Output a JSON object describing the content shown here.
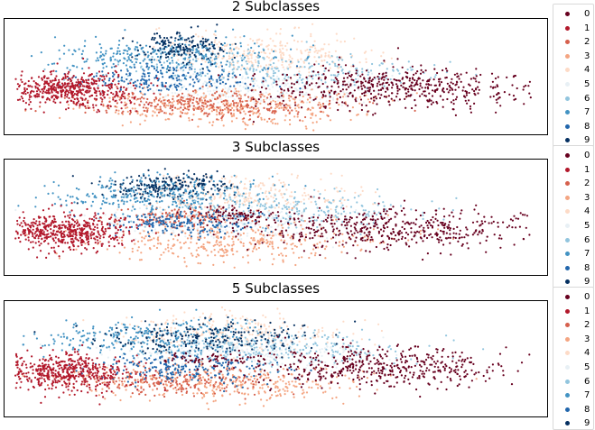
{
  "chart_data": [
    {
      "type": "scatter",
      "title": "2 Subclasses",
      "legend": [
        "0",
        "1",
        "2",
        "3",
        "4",
        "5",
        "6",
        "7",
        "8",
        "9"
      ],
      "legend_placement": "right",
      "axes_visible": false,
      "clusters": [
        {
          "label": "1",
          "cx": 0.12,
          "cy": 0.62,
          "spread": [
            0.06,
            0.09
          ],
          "n": 520
        },
        {
          "label": "0",
          "cx": 0.72,
          "cy": 0.6,
          "spread": [
            0.13,
            0.1
          ],
          "n": 520
        },
        {
          "label": "2",
          "cx": 0.38,
          "cy": 0.75,
          "spread": [
            0.12,
            0.06
          ],
          "n": 300
        },
        {
          "label": "3",
          "cx": 0.42,
          "cy": 0.78,
          "spread": [
            0.14,
            0.08
          ],
          "n": 380
        },
        {
          "label": "4",
          "cx": 0.48,
          "cy": 0.3,
          "spread": [
            0.1,
            0.09
          ],
          "n": 320
        },
        {
          "label": "5",
          "cx": 0.45,
          "cy": 0.62,
          "spread": [
            0.14,
            0.07
          ],
          "n": 340
        },
        {
          "label": "6",
          "cx": 0.52,
          "cy": 0.45,
          "spread": [
            0.14,
            0.08
          ],
          "n": 300
        },
        {
          "label": "7",
          "cx": 0.28,
          "cy": 0.3,
          "spread": [
            0.1,
            0.08
          ],
          "n": 320
        },
        {
          "label": "8",
          "cx": 0.3,
          "cy": 0.52,
          "spread": [
            0.08,
            0.06
          ],
          "n": 200
        },
        {
          "label": "9",
          "cx": 0.33,
          "cy": 0.22,
          "spread": [
            0.04,
            0.07
          ],
          "n": 160
        }
      ]
    },
    {
      "type": "scatter",
      "title": "3 Subclasses",
      "legend": [
        "0",
        "1",
        "2",
        "3",
        "4",
        "5",
        "6",
        "7",
        "8",
        "9"
      ],
      "legend_placement": "right",
      "axes_visible": false,
      "clusters": [
        {
          "label": "1",
          "cx": 0.11,
          "cy": 0.63,
          "spread": [
            0.06,
            0.09
          ],
          "n": 520
        },
        {
          "label": "0",
          "cx": 0.72,
          "cy": 0.6,
          "spread": [
            0.13,
            0.1
          ],
          "n": 480
        },
        {
          "label": "0",
          "cx": 0.43,
          "cy": 0.48,
          "spread": [
            0.04,
            0.04
          ],
          "n": 80
        },
        {
          "label": "2",
          "cx": 0.32,
          "cy": 0.5,
          "spread": [
            0.06,
            0.05
          ],
          "n": 160
        },
        {
          "label": "3",
          "cx": 0.42,
          "cy": 0.72,
          "spread": [
            0.14,
            0.09
          ],
          "n": 380
        },
        {
          "label": "4",
          "cx": 0.44,
          "cy": 0.3,
          "spread": [
            0.1,
            0.1
          ],
          "n": 300
        },
        {
          "label": "5",
          "cx": 0.42,
          "cy": 0.55,
          "spread": [
            0.14,
            0.07
          ],
          "n": 300
        },
        {
          "label": "6",
          "cx": 0.5,
          "cy": 0.42,
          "spread": [
            0.13,
            0.08
          ],
          "n": 280
        },
        {
          "label": "7",
          "cx": 0.28,
          "cy": 0.28,
          "spread": [
            0.1,
            0.09
          ],
          "n": 320
        },
        {
          "label": "8",
          "cx": 0.33,
          "cy": 0.55,
          "spread": [
            0.07,
            0.06
          ],
          "n": 200
        },
        {
          "label": "9",
          "cx": 0.3,
          "cy": 0.2,
          "spread": [
            0.06,
            0.06
          ],
          "n": 200
        }
      ]
    },
    {
      "type": "scatter",
      "title": "5 Subclasses",
      "legend": [
        "0",
        "1",
        "2",
        "3",
        "4",
        "5",
        "6",
        "7",
        "8",
        "9"
      ],
      "legend_placement": "right",
      "axes_visible": false,
      "clusters": [
        {
          "label": "1",
          "cx": 0.11,
          "cy": 0.63,
          "spread": [
            0.06,
            0.09
          ],
          "n": 520
        },
        {
          "label": "0",
          "cx": 0.7,
          "cy": 0.58,
          "spread": [
            0.12,
            0.1
          ],
          "n": 460
        },
        {
          "label": "0",
          "cx": 0.38,
          "cy": 0.5,
          "spread": [
            0.04,
            0.03
          ],
          "n": 60
        },
        {
          "label": "2",
          "cx": 0.3,
          "cy": 0.7,
          "spread": [
            0.1,
            0.07
          ],
          "n": 220
        },
        {
          "label": "3",
          "cx": 0.4,
          "cy": 0.72,
          "spread": [
            0.14,
            0.08
          ],
          "n": 340
        },
        {
          "label": "4",
          "cx": 0.4,
          "cy": 0.25,
          "spread": [
            0.1,
            0.09
          ],
          "n": 280
        },
        {
          "label": "5",
          "cx": 0.42,
          "cy": 0.45,
          "spread": [
            0.14,
            0.08
          ],
          "n": 300
        },
        {
          "label": "6",
          "cx": 0.5,
          "cy": 0.4,
          "spread": [
            0.14,
            0.08
          ],
          "n": 280
        },
        {
          "label": "7",
          "cx": 0.26,
          "cy": 0.3,
          "spread": [
            0.1,
            0.09
          ],
          "n": 300
        },
        {
          "label": "8",
          "cx": 0.33,
          "cy": 0.58,
          "spread": [
            0.08,
            0.07
          ],
          "n": 220
        },
        {
          "label": "9",
          "cx": 0.38,
          "cy": 0.3,
          "spread": [
            0.1,
            0.08
          ],
          "n": 220
        }
      ]
    }
  ],
  "colors": {
    "0": "#67001f",
    "1": "#b2182b",
    "2": "#d6604d",
    "3": "#f4a582",
    "4": "#fddbc7",
    "5": "#e8f0f5",
    "6": "#92c5de",
    "7": "#4393c3",
    "8": "#2166ac",
    "9": "#053061"
  }
}
